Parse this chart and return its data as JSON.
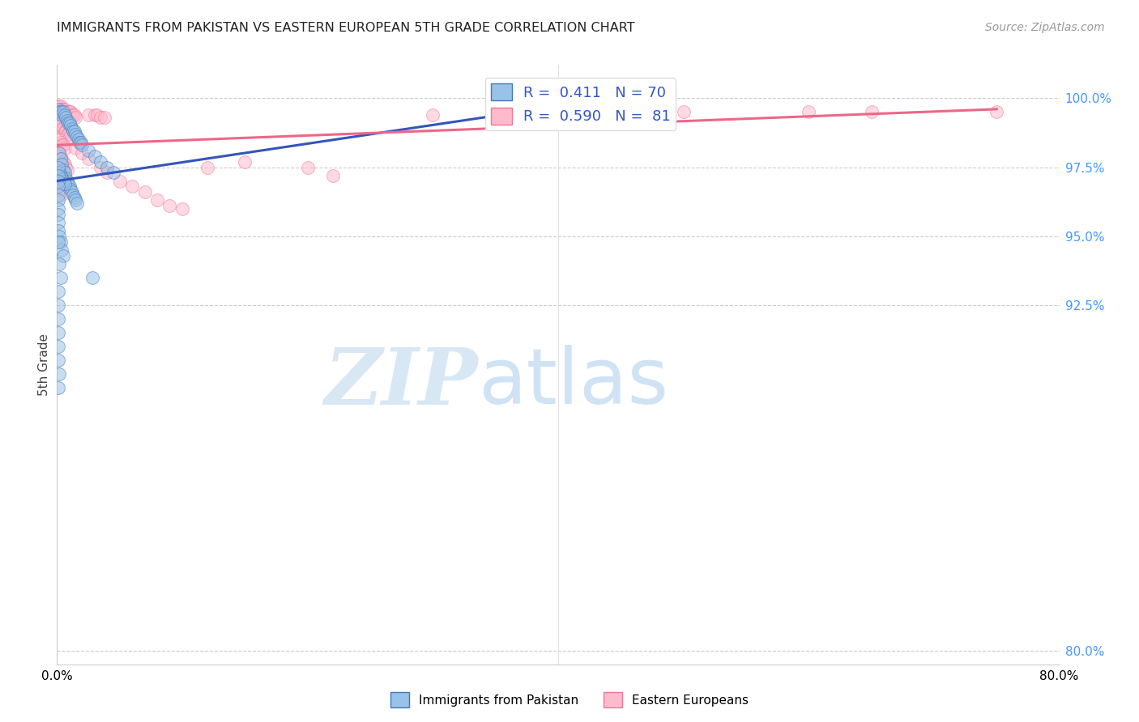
{
  "title": "IMMIGRANTS FROM PAKISTAN VS EASTERN EUROPEAN 5TH GRADE CORRELATION CHART",
  "source": "Source: ZipAtlas.com",
  "ylabel": "5th Grade",
  "y_ticks": [
    80.0,
    92.5,
    95.0,
    97.5,
    100.0
  ],
  "y_tick_labels": [
    "80.0%",
    "92.5%",
    "95.0%",
    "97.5%",
    "100.0%"
  ],
  "xlim": [
    0.0,
    0.8
  ],
  "ylim": [
    79.5,
    101.2
  ],
  "pakistan_color": "#99c2e8",
  "eastern_color": "#ffbbcc",
  "pakistan_edge_color": "#4477bb",
  "eastern_edge_color": "#ee7799",
  "pakistan_line_color": "#3355bb",
  "eastern_line_color": "#ee6688",
  "watermark_zip_color": "#c8ddf0",
  "watermark_atlas_color": "#aaccee",
  "pakistan_scatter": [
    [
      0.001,
      99.6
    ],
    [
      0.002,
      99.5
    ],
    [
      0.003,
      99.5
    ],
    [
      0.004,
      99.4
    ],
    [
      0.005,
      99.5
    ],
    [
      0.006,
      99.4
    ],
    [
      0.007,
      99.3
    ],
    [
      0.008,
      99.2
    ],
    [
      0.009,
      99.1
    ],
    [
      0.01,
      99.1
    ],
    [
      0.011,
      99.0
    ],
    [
      0.012,
      98.9
    ],
    [
      0.013,
      98.8
    ],
    [
      0.014,
      98.8
    ],
    [
      0.015,
      98.7
    ],
    [
      0.016,
      98.6
    ],
    [
      0.017,
      98.5
    ],
    [
      0.018,
      98.4
    ],
    [
      0.019,
      98.4
    ],
    [
      0.02,
      98.3
    ],
    [
      0.025,
      98.1
    ],
    [
      0.03,
      97.9
    ],
    [
      0.035,
      97.7
    ],
    [
      0.04,
      97.5
    ],
    [
      0.045,
      97.3
    ],
    [
      0.002,
      98.0
    ],
    [
      0.003,
      97.8
    ],
    [
      0.004,
      97.6
    ],
    [
      0.005,
      97.4
    ],
    [
      0.006,
      97.3
    ],
    [
      0.007,
      97.1
    ],
    [
      0.008,
      97.0
    ],
    [
      0.009,
      96.9
    ],
    [
      0.01,
      96.8
    ],
    [
      0.011,
      96.7
    ],
    [
      0.012,
      96.6
    ],
    [
      0.013,
      96.5
    ],
    [
      0.014,
      96.4
    ],
    [
      0.015,
      96.3
    ],
    [
      0.016,
      96.2
    ],
    [
      0.002,
      97.3
    ],
    [
      0.003,
      97.2
    ],
    [
      0.004,
      97.1
    ],
    [
      0.005,
      97.0
    ],
    [
      0.006,
      96.9
    ],
    [
      0.001,
      97.5
    ],
    [
      0.001,
      97.2
    ],
    [
      0.001,
      97.0
    ],
    [
      0.001,
      96.8
    ],
    [
      0.001,
      96.5
    ],
    [
      0.001,
      96.3
    ],
    [
      0.001,
      96.0
    ],
    [
      0.001,
      95.8
    ],
    [
      0.001,
      95.5
    ],
    [
      0.001,
      95.2
    ],
    [
      0.002,
      95.0
    ],
    [
      0.003,
      94.8
    ],
    [
      0.004,
      94.5
    ],
    [
      0.005,
      94.3
    ],
    [
      0.001,
      94.8
    ],
    [
      0.002,
      94.0
    ],
    [
      0.003,
      93.5
    ],
    [
      0.001,
      93.0
    ],
    [
      0.001,
      92.5
    ],
    [
      0.001,
      92.0
    ],
    [
      0.028,
      93.5
    ],
    [
      0.001,
      91.5
    ],
    [
      0.001,
      91.0
    ],
    [
      0.001,
      90.5
    ],
    [
      0.002,
      90.0
    ],
    [
      0.001,
      89.5
    ]
  ],
  "eastern_scatter": [
    [
      0.001,
      99.7
    ],
    [
      0.002,
      99.7
    ],
    [
      0.003,
      99.7
    ],
    [
      0.004,
      99.6
    ],
    [
      0.005,
      99.6
    ],
    [
      0.006,
      99.6
    ],
    [
      0.007,
      99.5
    ],
    [
      0.008,
      99.5
    ],
    [
      0.009,
      99.5
    ],
    [
      0.01,
      99.5
    ],
    [
      0.011,
      99.5
    ],
    [
      0.012,
      99.4
    ],
    [
      0.013,
      99.4
    ],
    [
      0.014,
      99.4
    ],
    [
      0.015,
      99.3
    ],
    [
      0.025,
      99.4
    ],
    [
      0.03,
      99.4
    ],
    [
      0.032,
      99.4
    ],
    [
      0.035,
      99.3
    ],
    [
      0.038,
      99.3
    ],
    [
      0.001,
      99.2
    ],
    [
      0.002,
      99.1
    ],
    [
      0.003,
      99.0
    ],
    [
      0.004,
      98.9
    ],
    [
      0.005,
      98.9
    ],
    [
      0.006,
      98.8
    ],
    [
      0.007,
      98.8
    ],
    [
      0.008,
      98.7
    ],
    [
      0.009,
      98.7
    ],
    [
      0.01,
      98.6
    ],
    [
      0.002,
      98.5
    ],
    [
      0.003,
      98.4
    ],
    [
      0.004,
      98.3
    ],
    [
      0.005,
      98.3
    ],
    [
      0.006,
      98.2
    ],
    [
      0.001,
      98.0
    ],
    [
      0.002,
      97.9
    ],
    [
      0.003,
      97.8
    ],
    [
      0.004,
      97.8
    ],
    [
      0.005,
      97.7
    ],
    [
      0.006,
      97.6
    ],
    [
      0.007,
      97.5
    ],
    [
      0.008,
      97.4
    ],
    [
      0.001,
      97.3
    ],
    [
      0.002,
      97.2
    ],
    [
      0.003,
      97.1
    ],
    [
      0.004,
      97.0
    ],
    [
      0.015,
      98.2
    ],
    [
      0.02,
      98.0
    ],
    [
      0.025,
      97.8
    ],
    [
      0.001,
      96.8
    ],
    [
      0.002,
      96.7
    ],
    [
      0.003,
      96.5
    ],
    [
      0.035,
      97.5
    ],
    [
      0.04,
      97.3
    ],
    [
      0.05,
      97.0
    ],
    [
      0.06,
      96.8
    ],
    [
      0.07,
      96.6
    ],
    [
      0.08,
      96.3
    ],
    [
      0.09,
      96.1
    ],
    [
      0.1,
      96.0
    ],
    [
      0.12,
      97.5
    ],
    [
      0.15,
      97.7
    ],
    [
      0.2,
      97.5
    ],
    [
      0.22,
      97.2
    ],
    [
      0.3,
      99.4
    ],
    [
      0.35,
      99.5
    ],
    [
      0.45,
      99.5
    ],
    [
      0.5,
      99.5
    ],
    [
      0.6,
      99.5
    ],
    [
      0.65,
      99.5
    ],
    [
      0.75,
      99.5
    ]
  ],
  "pak_trend_x": [
    0.0,
    0.37
  ],
  "pak_trend_y": [
    97.0,
    99.5
  ],
  "eas_trend_x": [
    0.0,
    0.75
  ],
  "eas_trend_y": [
    98.3,
    99.6
  ]
}
